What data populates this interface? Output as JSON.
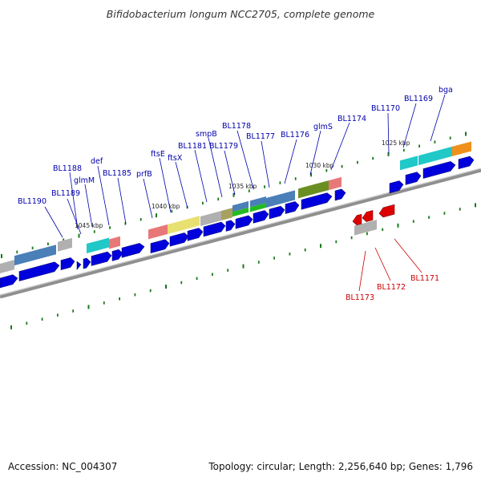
{
  "title": "Bifidobacterium longum NCC2705, complete genome",
  "footer": {
    "accession": "Accession: NC_004307",
    "summary": "Topology: circular; Length: 2,256,640 bp; Genes: 1,796"
  },
  "colors": {
    "cds_forward": "#0000dd",
    "cds_reverse": "#dd0000",
    "label_forward": "#0000aa",
    "label_reverse": "#cc0000",
    "backbone": "#999999",
    "tick": "#1a7a1a"
  },
  "kbp_labels": [
    "1025 kbp",
    "1030 kbp",
    "1035 kbp",
    "1040 kbp",
    "1045 kbp"
  ],
  "forward_labels": [
    "BL1190",
    "BL1189",
    "BL1188",
    "glmM",
    "def",
    "BL1185",
    "prfB",
    "ftsE",
    "ftsX",
    "BL1181",
    "smpB",
    "BL1179",
    "BL1178",
    "BL1177",
    "BL1176",
    "glmS",
    "BL1174",
    "BL1170",
    "BL1169",
    "bga"
  ],
  "reverse_labels": [
    "BL1173",
    "BL1172",
    "BL1171"
  ]
}
